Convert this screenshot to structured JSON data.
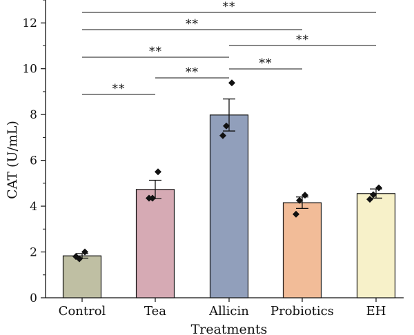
{
  "chart_data": {
    "type": "bar",
    "xlabel": "Treatments",
    "ylabel": "CAT (U/mL)",
    "ylim": [
      0,
      13
    ],
    "yticks": [
      0,
      2,
      4,
      6,
      8,
      10,
      12
    ],
    "categories": [
      "Control",
      "Tea",
      "Allicin",
      "Probiotics",
      "EH"
    ],
    "values": [
      1.83,
      4.73,
      7.98,
      4.15,
      4.55
    ],
    "errors": [
      0.1,
      0.4,
      0.7,
      0.25,
      0.2
    ],
    "points": [
      [
        2.0,
        1.7,
        1.8
      ],
      [
        5.5,
        4.35,
        4.35
      ],
      [
        9.38,
        7.5,
        7.08
      ],
      [
        4.48,
        4.25,
        3.65
      ],
      [
        4.8,
        4.5,
        4.3
      ]
    ],
    "colors": [
      "#bfbfa3",
      "#d6aab4",
      "#919fbb",
      "#f2bc98",
      "#f7f1c9"
    ],
    "grid": false,
    "legend": "none",
    "significance": [
      {
        "from": "Control",
        "to": "EH",
        "label": "**"
      },
      {
        "from": "Control",
        "to": "Probiotics",
        "label": "**"
      },
      {
        "from": "Allicin",
        "to": "EH",
        "label": "**"
      },
      {
        "from": "Control",
        "to": "Allicin",
        "label": "**"
      },
      {
        "from": "Allicin",
        "to": "Probiotics",
        "label": "**"
      },
      {
        "from": "Tea",
        "to": "Allicin",
        "label": "**"
      },
      {
        "from": "Control",
        "to": "Tea",
        "label": "**"
      }
    ]
  }
}
